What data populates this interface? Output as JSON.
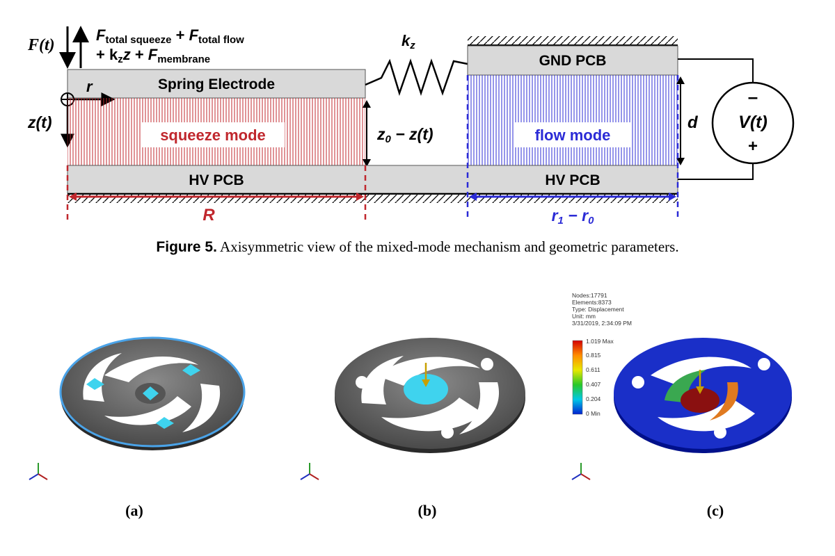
{
  "figure5": {
    "force_label": "F(t)",
    "force_eq_line1": {
      "f1": "F",
      "s1": "total squeeze",
      "plus": " + ",
      "f2": "F",
      "s2": "total flow"
    },
    "force_eq_line2": {
      "pre": "+ k",
      "sub_z": "z",
      "zvar": "z",
      "plus": " + ",
      "f3": "F",
      "s3": "membrane"
    },
    "spring_label": {
      "k": "k",
      "sub": "z"
    },
    "spring_electrode": "Spring Electrode",
    "gnd_pcb": "GND PCB",
    "hv_pcb_left": "HV PCB",
    "hv_pcb_right": "HV PCB",
    "squeeze_mode": "squeeze mode",
    "flow_mode": "flow mode",
    "r_label": "r",
    "z_label": "z(t)",
    "gap_label": {
      "z0": "z",
      "z0sub": "0",
      "rest": " − z(t)"
    },
    "d_label": "d",
    "voltage": "V(t)",
    "minus": "–",
    "plus": "+",
    "R_label": "R",
    "r1r0_label": {
      "r1": "r",
      "r1sub": "1",
      "mid": " − r",
      "r0sub": "0"
    },
    "colors": {
      "squeeze": "#c0272d",
      "flow": "#2b2bd6",
      "pcb": "#d9d9d9"
    }
  },
  "caption": {
    "number": "Figure 5.",
    "text": "Axisymmetric view of the mixed-mode mechanism and geometric parameters."
  },
  "fea": {
    "nodes": "Nodes:17791",
    "elements": "Elements:8373",
    "type": "Type: Displacement",
    "unit": "Unit: mm",
    "date": "3/31/2019, 2:34:09 PM",
    "legend": [
      "1.019 Max",
      "0.815",
      "0.611",
      "0.407",
      "0.204",
      "0 Min"
    ]
  },
  "sublabels": [
    "(a)",
    "(b)",
    "(c)"
  ]
}
